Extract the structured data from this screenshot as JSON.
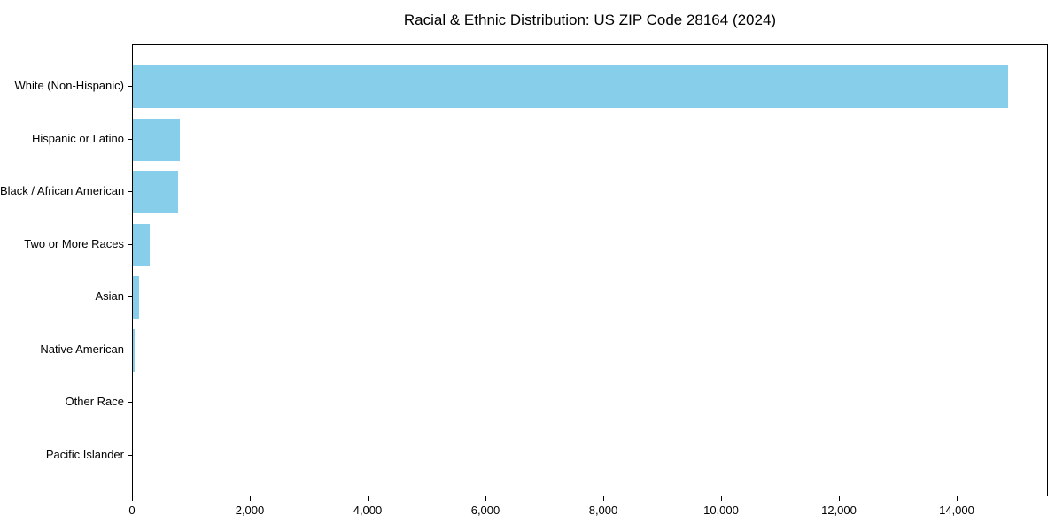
{
  "chart_data": {
    "type": "bar",
    "orientation": "horizontal",
    "title": "Racial & Ethnic Distribution: US ZIP Code 28164 (2024)",
    "categories": [
      "White (Non-Hispanic)",
      "Hispanic or Latino",
      "Black / African American",
      "Two or More Races",
      "Asian",
      "Native American",
      "Other Race",
      "Pacific Islander"
    ],
    "values": [
      14850,
      790,
      770,
      280,
      105,
      25,
      0,
      0
    ],
    "xlabel": "",
    "ylabel": "",
    "xlim": [
      0,
      15548
    ],
    "xticks": [
      0,
      2000,
      4000,
      6000,
      8000,
      10000,
      12000,
      14000
    ],
    "xtick_labels": [
      "0",
      "2,000",
      "4,000",
      "6,000",
      "8,000",
      "10,000",
      "12,000",
      "14,000"
    ],
    "bar_color": "#87CEEB",
    "axis_color": "#000000",
    "background_color": "#FFFFFF",
    "grid": false,
    "legend": null
  }
}
